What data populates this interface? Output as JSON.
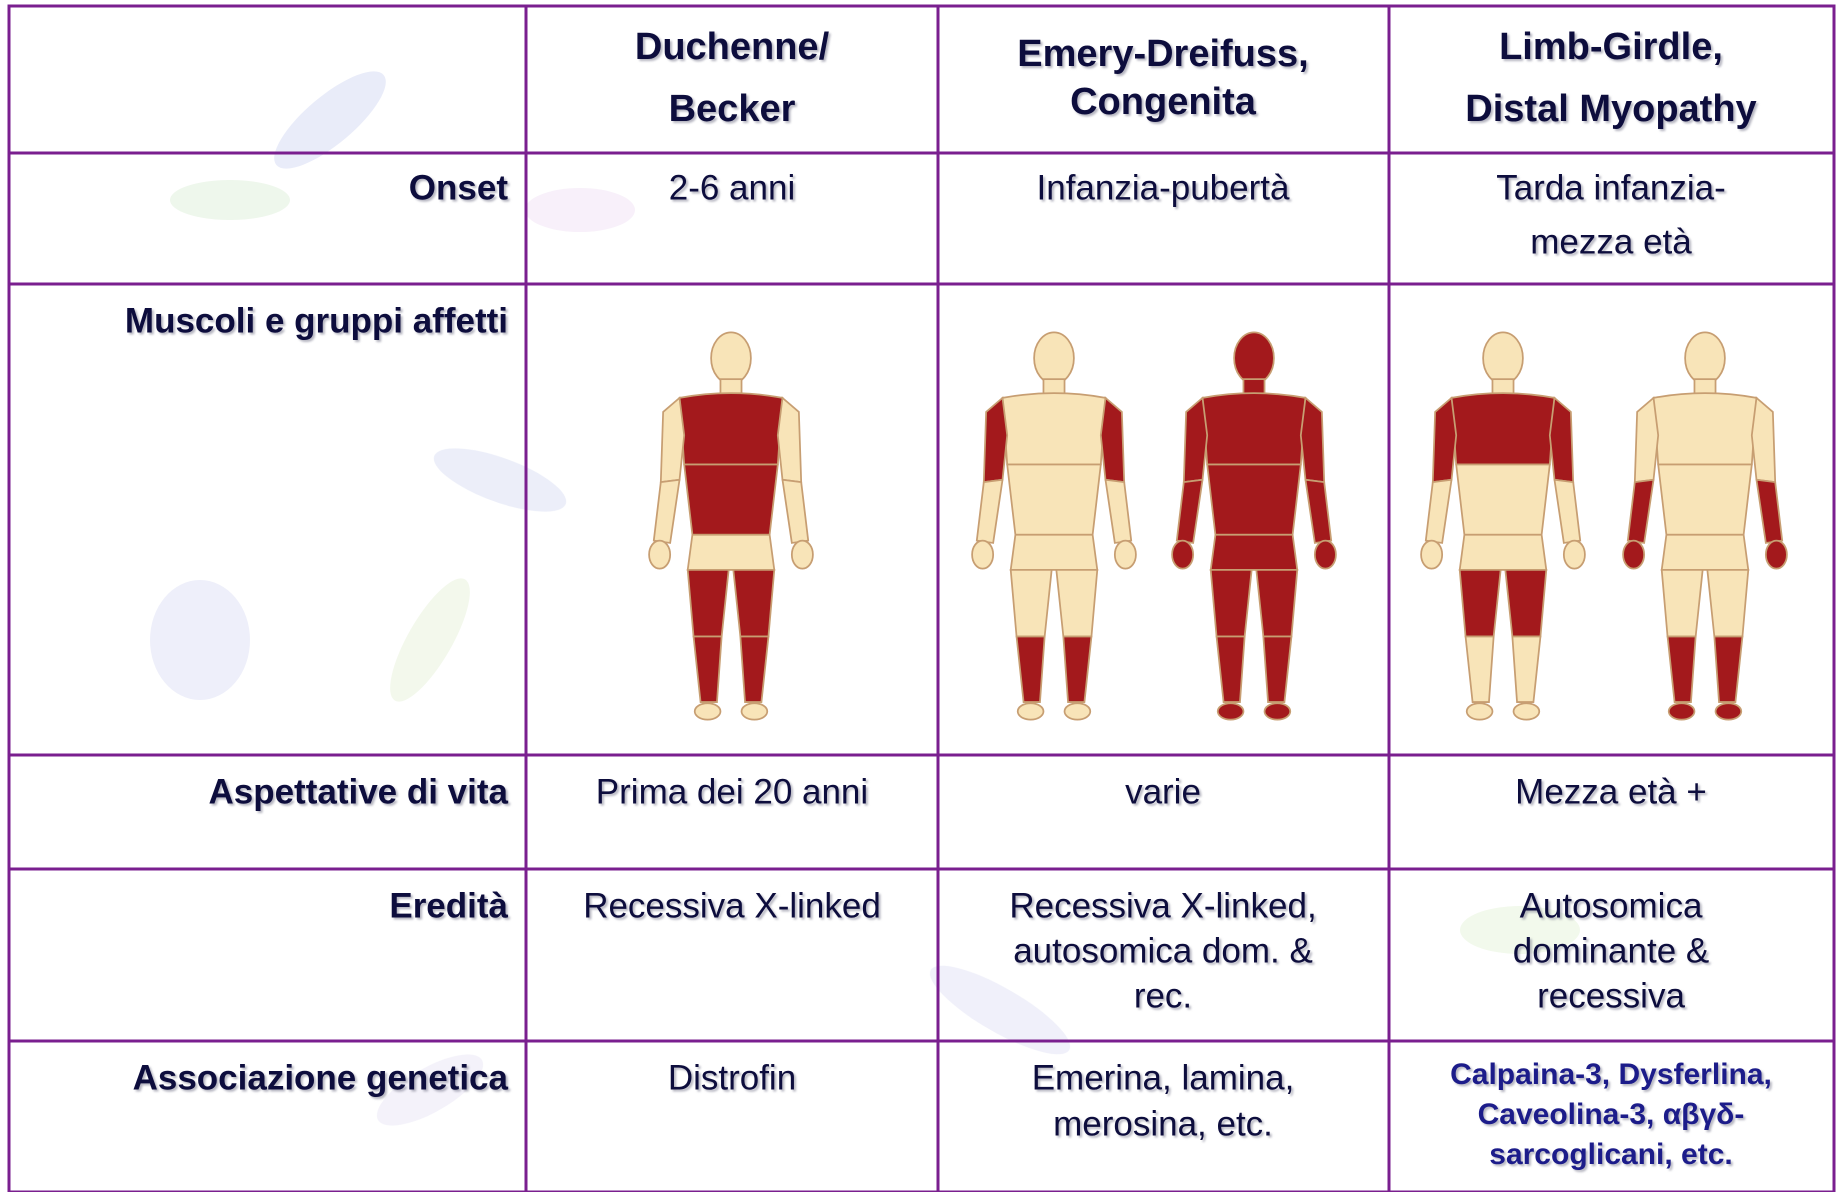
{
  "table": {
    "columns": [
      [
        "Duchenne/",
        "Becker"
      ],
      [
        "Emery-Dreifuss,",
        "Congenita"
      ],
      [
        "Limb-Girdle,",
        "Distal Myopathy"
      ]
    ],
    "rows": [
      {
        "label": "Onset",
        "cells": [
          [
            "2-6 anni"
          ],
          [
            "Infanzia-pubertà"
          ],
          [
            "Tarda infanzia-",
            "mezza età"
          ]
        ]
      },
      {
        "label": "Muscoli e gruppi affetti"
      },
      {
        "label": "Aspettative di vita",
        "cells": [
          [
            "Prima dei 20 anni"
          ],
          [
            "varie"
          ],
          [
            "Mezza età +"
          ]
        ]
      },
      {
        "label": "Eredità",
        "cells": [
          [
            "Recessiva X-linked"
          ],
          [
            "Recessiva X-linked,",
            "autosomica dom. &",
            "rec."
          ],
          [
            "Autosomica",
            "dominante &",
            "recessiva"
          ]
        ]
      },
      {
        "label": "Associazione genetica",
        "cells": [
          [
            "Distrofin"
          ],
          [
            "Emerina, lamina,",
            "merosina, etc."
          ],
          [
            "Calpaina-3, Dysferlina,",
            "Caveolina-3, αβγδ-",
            "sarcoglicani, etc."
          ]
        ]
      }
    ]
  }
}
